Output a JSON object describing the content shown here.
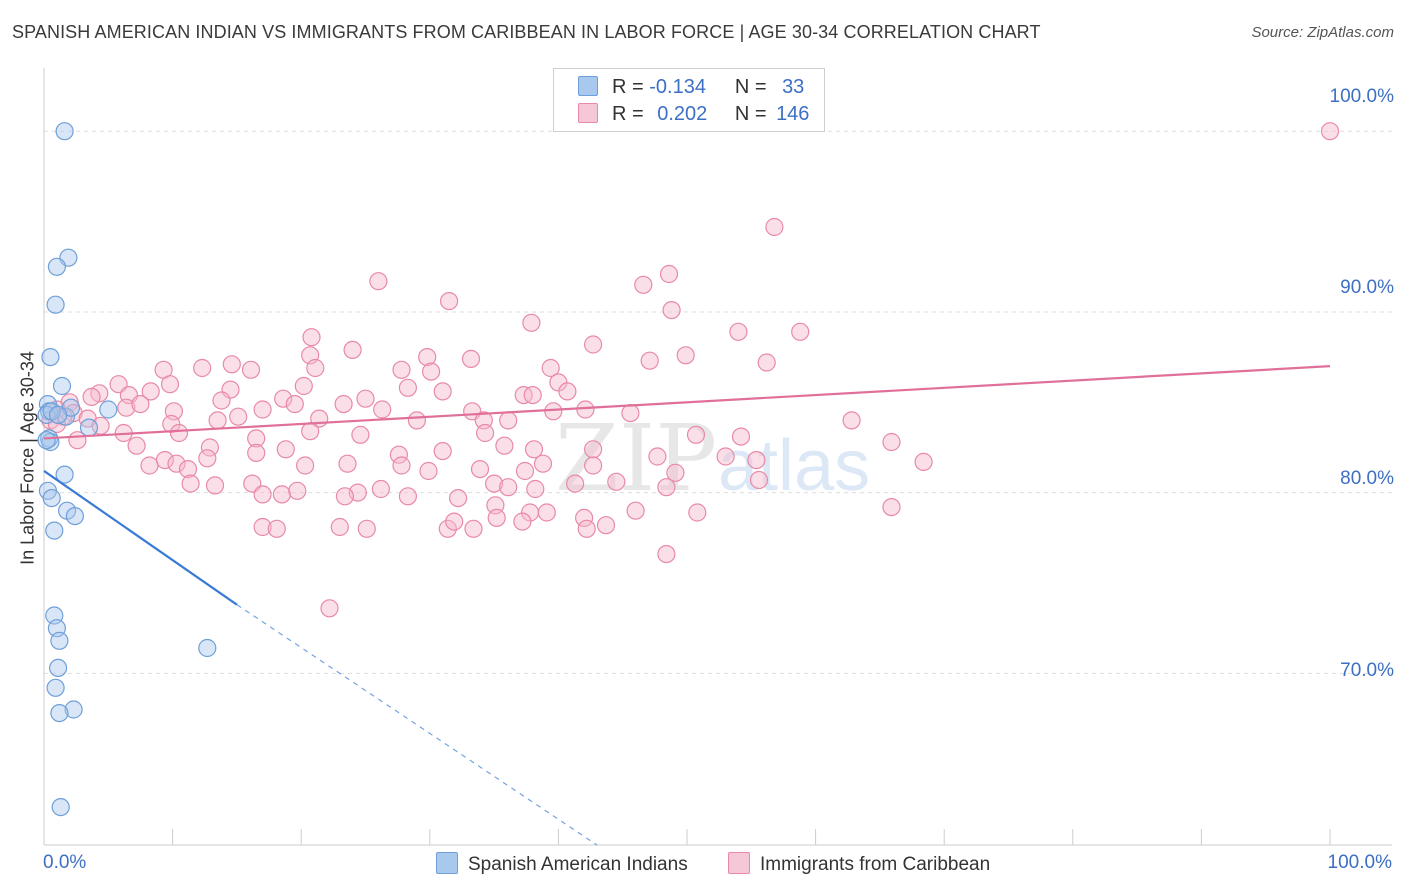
{
  "title": "SPANISH AMERICAN INDIAN VS IMMIGRANTS FROM CARIBBEAN IN LABOR FORCE | AGE 30-34 CORRELATION CHART",
  "source": "Source: ZipAtlas.com",
  "watermark": {
    "zip": "ZIP",
    "atlas": "atlas"
  },
  "legend": {
    "series1": {
      "r_label": "R =",
      "r_value": "-0.134",
      "n_label": "N =",
      "n_value": "33"
    },
    "series2": {
      "r_label": "R =",
      "r_value": "0.202",
      "n_label": "N =",
      "n_value": "146"
    }
  },
  "colors": {
    "blue_fill": "#a9c8ee",
    "blue_stroke": "#6f9fd8",
    "blue_line": "#3a7bd5",
    "pink_fill": "#f6b8cb",
    "pink_stroke": "#e88aa6",
    "pink_line": "#e0709a",
    "tick_text": "#3d6fc4",
    "grid": "#dddddd"
  },
  "chart_data": {
    "type": "scatter",
    "title": "SPANISH AMERICAN INDIAN VS IMMIGRANTS FROM CARIBBEAN IN LABOR FORCE | AGE 30-34 CORRELATION CHART",
    "xlabel": "",
    "ylabel": "In Labor Force | Age 30-34",
    "xlim": [
      0,
      100
    ],
    "ylim": [
      60.5,
      103.5
    ],
    "x_tick_labels": {
      "left": "0.0%",
      "right": "100.0%"
    },
    "y_ticks": [
      {
        "value": 70,
        "label": "70.0%"
      },
      {
        "value": 80,
        "label": "80.0%"
      },
      {
        "value": 90,
        "label": "90.0%"
      },
      {
        "value": 100,
        "label": "100.0%"
      }
    ],
    "grid": true,
    "legend_position": "bottom-center",
    "series": [
      {
        "name": "Spanish American Indians",
        "trend": {
          "x0": 0,
          "y0": 81.2,
          "x1": 15,
          "y1": 73.8,
          "dashed_to_x": 43,
          "dashed_to_y": 60.5
        },
        "points": [
          [
            1.6,
            100.0
          ],
          [
            1.9,
            93.0
          ],
          [
            1.0,
            92.5
          ],
          [
            0.9,
            90.4
          ],
          [
            0.5,
            87.5
          ],
          [
            1.4,
            85.9
          ],
          [
            0.3,
            84.9
          ],
          [
            0.4,
            84.5
          ],
          [
            1.7,
            84.2
          ],
          [
            0.2,
            84.3
          ],
          [
            5.0,
            84.6
          ],
          [
            3.5,
            83.6
          ],
          [
            0.4,
            83.0
          ],
          [
            0.5,
            82.8
          ],
          [
            1.6,
            81.0
          ],
          [
            0.3,
            80.1
          ],
          [
            0.6,
            79.7
          ],
          [
            1.8,
            79.0
          ],
          [
            2.4,
            78.7
          ],
          [
            0.8,
            77.9
          ],
          [
            0.8,
            73.2
          ],
          [
            1.0,
            72.5
          ],
          [
            1.2,
            71.8
          ],
          [
            12.7,
            71.4
          ],
          [
            1.1,
            70.3
          ],
          [
            0.9,
            69.2
          ],
          [
            2.3,
            68.0
          ],
          [
            1.2,
            67.8
          ],
          [
            1.3,
            62.6
          ],
          [
            0.6,
            84.5
          ],
          [
            2.1,
            84.7
          ],
          [
            0.2,
            82.9
          ],
          [
            1.1,
            84.3
          ]
        ]
      },
      {
        "name": "Immigrants from Caribbean",
        "trend": {
          "x0": 0,
          "y0": 83.0,
          "x1": 100,
          "y1": 87.0
        },
        "points": [
          [
            100,
            100.0
          ],
          [
            56.8,
            94.7
          ],
          [
            26.0,
            91.7
          ],
          [
            31.5,
            90.6
          ],
          [
            48.6,
            92.1
          ],
          [
            46.6,
            91.5
          ],
          [
            48.8,
            90.1
          ],
          [
            37.9,
            89.4
          ],
          [
            20.8,
            88.6
          ],
          [
            58.8,
            88.9
          ],
          [
            42.7,
            88.2
          ],
          [
            54.0,
            88.9
          ],
          [
            20.7,
            87.6
          ],
          [
            24.0,
            87.9
          ],
          [
            29.8,
            87.5
          ],
          [
            33.2,
            87.4
          ],
          [
            47.1,
            87.3
          ],
          [
            49.9,
            87.6
          ],
          [
            56.2,
            87.2
          ],
          [
            14.6,
            87.1
          ],
          [
            12.3,
            86.9
          ],
          [
            9.3,
            86.8
          ],
          [
            16.1,
            86.8
          ],
          [
            21.1,
            86.9
          ],
          [
            27.8,
            86.8
          ],
          [
            39.4,
            86.9
          ],
          [
            30.1,
            86.7
          ],
          [
            40.0,
            86.1
          ],
          [
            5.8,
            86.0
          ],
          [
            9.8,
            86.0
          ],
          [
            14.5,
            85.7
          ],
          [
            20.2,
            85.9
          ],
          [
            28.3,
            85.8
          ],
          [
            31.0,
            85.6
          ],
          [
            40.7,
            85.6
          ],
          [
            4.3,
            85.5
          ],
          [
            6.6,
            85.4
          ],
          [
            8.3,
            85.6
          ],
          [
            18.6,
            85.2
          ],
          [
            25.0,
            85.2
          ],
          [
            37.3,
            85.4
          ],
          [
            38.0,
            85.4
          ],
          [
            3.7,
            85.3
          ],
          [
            2.0,
            85.0
          ],
          [
            13.8,
            85.1
          ],
          [
            23.3,
            84.9
          ],
          [
            17.0,
            84.6
          ],
          [
            19.5,
            84.9
          ],
          [
            26.3,
            84.6
          ],
          [
            33.3,
            84.5
          ],
          [
            39.6,
            84.5
          ],
          [
            6.4,
            84.7
          ],
          [
            10.1,
            84.5
          ],
          [
            7.5,
            84.9
          ],
          [
            1.0,
            84.6
          ],
          [
            2.3,
            84.4
          ],
          [
            1.5,
            84.2
          ],
          [
            0.5,
            84.0
          ],
          [
            3.4,
            84.1
          ],
          [
            9.9,
            83.8
          ],
          [
            13.5,
            84.0
          ],
          [
            15.1,
            84.2
          ],
          [
            21.4,
            84.1
          ],
          [
            29.0,
            84.0
          ],
          [
            34.2,
            84.0
          ],
          [
            36.1,
            84.0
          ],
          [
            42.1,
            84.6
          ],
          [
            45.6,
            84.4
          ],
          [
            62.8,
            84.0
          ],
          [
            4.4,
            83.7
          ],
          [
            6.2,
            83.3
          ],
          [
            10.5,
            83.3
          ],
          [
            16.5,
            83.0
          ],
          [
            20.7,
            83.4
          ],
          [
            24.6,
            83.2
          ],
          [
            34.3,
            83.3
          ],
          [
            54.2,
            83.1
          ],
          [
            50.7,
            83.2
          ],
          [
            1.0,
            83.8
          ],
          [
            2.6,
            82.9
          ],
          [
            7.2,
            82.6
          ],
          [
            12.9,
            82.5
          ],
          [
            16.5,
            82.2
          ],
          [
            18.8,
            82.4
          ],
          [
            27.6,
            82.1
          ],
          [
            31.0,
            82.3
          ],
          [
            35.8,
            82.6
          ],
          [
            38.1,
            82.4
          ],
          [
            42.7,
            82.4
          ],
          [
            47.7,
            82.0
          ],
          [
            53.0,
            82.0
          ],
          [
            55.4,
            81.8
          ],
          [
            65.9,
            82.8
          ],
          [
            68.4,
            81.7
          ],
          [
            9.4,
            81.8
          ],
          [
            10.3,
            81.6
          ],
          [
            11.2,
            81.3
          ],
          [
            20.3,
            81.5
          ],
          [
            23.6,
            81.6
          ],
          [
            27.8,
            81.5
          ],
          [
            29.9,
            81.2
          ],
          [
            33.9,
            81.3
          ],
          [
            37.4,
            81.2
          ],
          [
            38.8,
            81.6
          ],
          [
            42.7,
            81.5
          ],
          [
            49.1,
            81.1
          ],
          [
            8.2,
            81.5
          ],
          [
            12.7,
            81.9
          ],
          [
            11.4,
            80.5
          ],
          [
            16.2,
            80.5
          ],
          [
            17.0,
            79.9
          ],
          [
            24.4,
            80.0
          ],
          [
            26.2,
            80.2
          ],
          [
            35.0,
            80.5
          ],
          [
            36.1,
            80.3
          ],
          [
            38.2,
            80.2
          ],
          [
            41.3,
            80.5
          ],
          [
            44.5,
            80.6
          ],
          [
            48.4,
            80.3
          ],
          [
            55.6,
            80.7
          ],
          [
            18.5,
            79.9
          ],
          [
            23.4,
            79.8
          ],
          [
            28.3,
            79.8
          ],
          [
            32.2,
            79.7
          ],
          [
            35.1,
            79.3
          ],
          [
            37.8,
            78.9
          ],
          [
            39.1,
            78.9
          ],
          [
            42.0,
            78.6
          ],
          [
            46.0,
            79.0
          ],
          [
            65.9,
            79.2
          ],
          [
            17.0,
            78.1
          ],
          [
            18.1,
            78.0
          ],
          [
            23.0,
            78.1
          ],
          [
            25.1,
            78.0
          ],
          [
            31.4,
            78.0
          ],
          [
            31.9,
            78.4
          ],
          [
            33.4,
            78.0
          ],
          [
            37.2,
            78.4
          ],
          [
            42.2,
            78.0
          ],
          [
            48.4,
            76.6
          ],
          [
            22.2,
            73.6
          ],
          [
            35.2,
            78.6
          ],
          [
            43.7,
            78.2
          ],
          [
            50.8,
            78.9
          ],
          [
            13.3,
            80.4
          ],
          [
            19.7,
            80.1
          ]
        ]
      }
    ]
  },
  "bottom_legend": {
    "series1_label": "Spanish American Indians",
    "series2_label": "Immigrants from Caribbean"
  }
}
